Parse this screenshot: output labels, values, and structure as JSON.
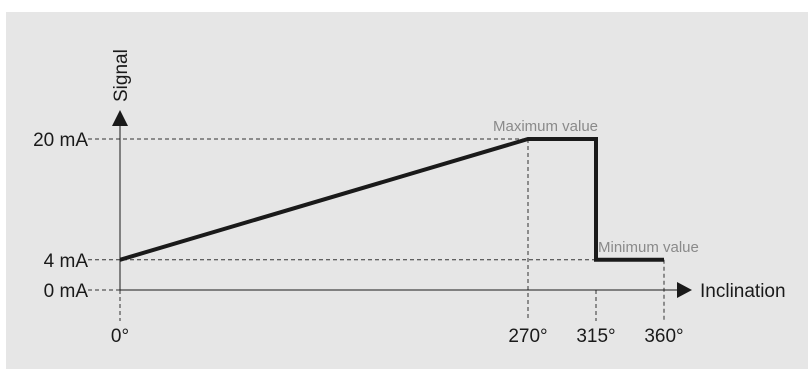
{
  "chart_data": {
    "type": "line",
    "title": "",
    "xlabel": "Inclination",
    "ylabel": "Signal",
    "x_unit": "°",
    "y_unit": "mA",
    "xlim": [
      0,
      360
    ],
    "ylim": [
      0,
      20
    ],
    "grid": false,
    "x_ticks": [
      {
        "value": 0,
        "label": "0°"
      },
      {
        "value": 270,
        "label": "270°"
      },
      {
        "value": 315,
        "label": "315°"
      },
      {
        "value": 360,
        "label": "360°"
      }
    ],
    "y_ticks": [
      {
        "value": 20,
        "label": "20 mA"
      },
      {
        "value": 4,
        "label": "4 mA"
      },
      {
        "value": 0,
        "label": "0 mA"
      }
    ],
    "series": [
      {
        "points": [
          {
            "x": 0,
            "y": 4
          },
          {
            "x": 270,
            "y": 20
          },
          {
            "x": 315,
            "y": 20
          },
          {
            "x": 315,
            "y": 4
          },
          {
            "x": 360,
            "y": 4
          }
        ]
      }
    ],
    "annotations": [
      {
        "text": "Maximum value",
        "x": 270,
        "y": 20
      },
      {
        "text": "Minimum value",
        "x": 315,
        "y": 4
      }
    ],
    "colors": {
      "background": "#e6e6e6",
      "line": "#1a1a1a",
      "annotation": "#8a8a8a",
      "guide": "#333333"
    }
  }
}
